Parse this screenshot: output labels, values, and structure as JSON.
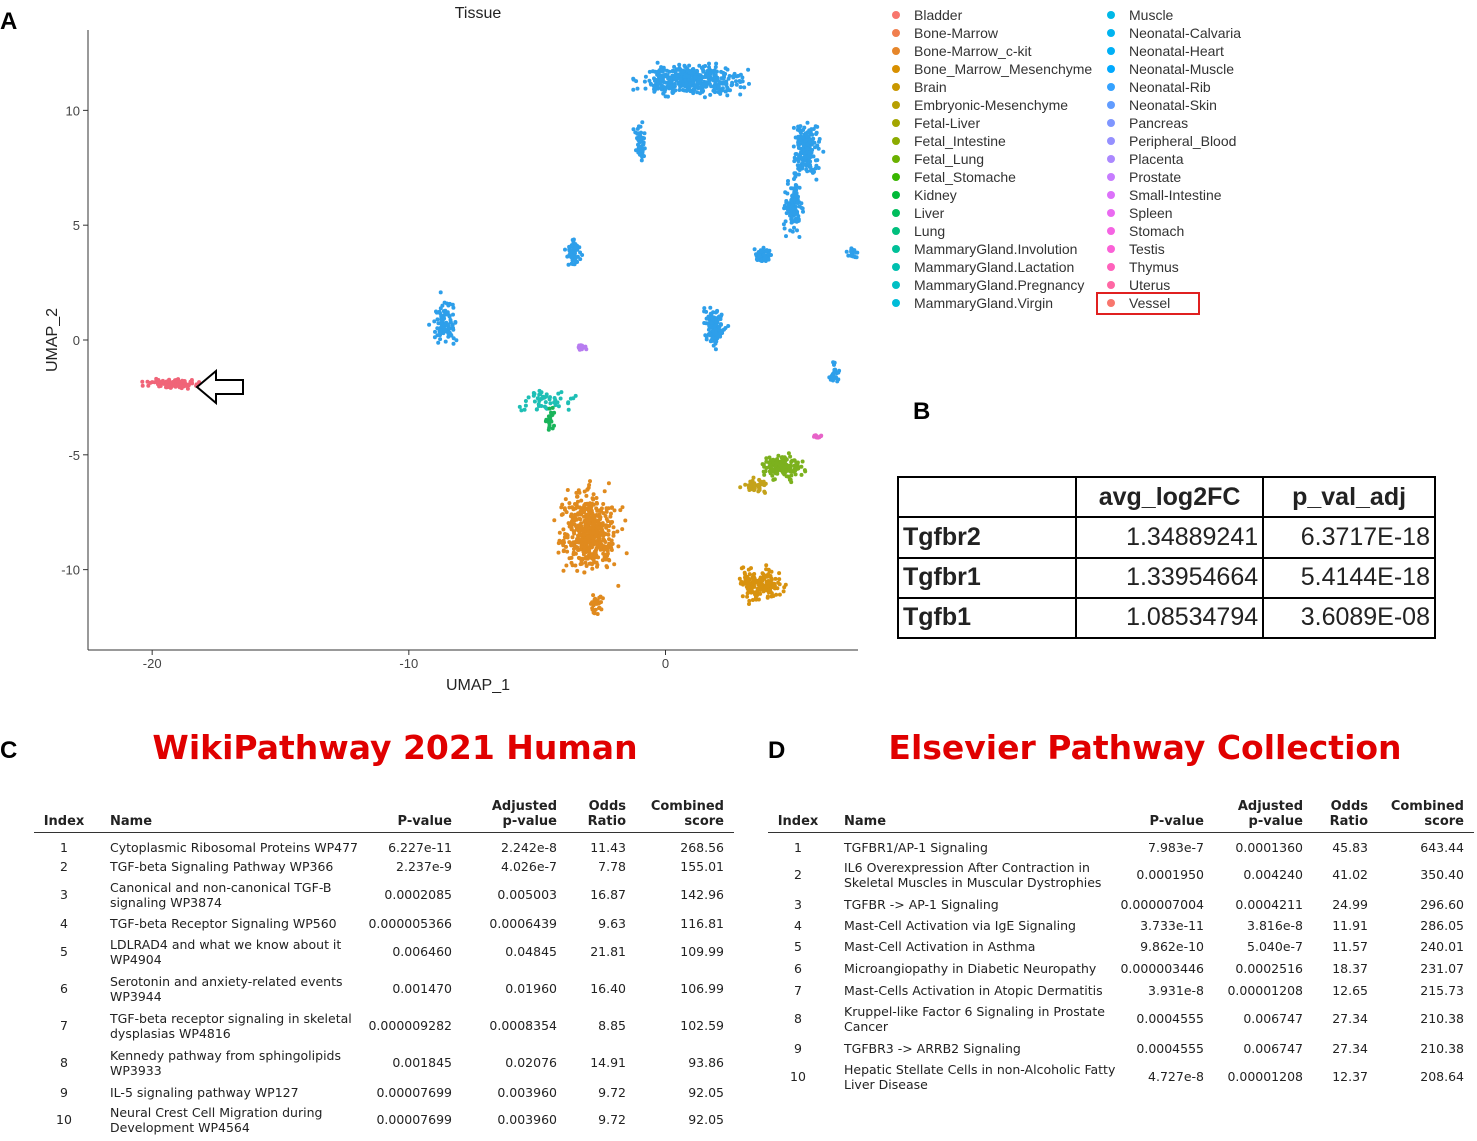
{
  "panel_labels": {
    "a": "A",
    "b": "B",
    "c": "C",
    "d": "D"
  },
  "legend": {
    "items": [
      {
        "label": "Bladder",
        "color": "#F8766D"
      },
      {
        "label": "Bone-Marrow",
        "color": "#F07E4D"
      },
      {
        "label": "Bone-Marrow_c-kit",
        "color": "#E6862A"
      },
      {
        "label": "Bone_Marrow_Mesenchyme",
        "color": "#D89000"
      },
      {
        "label": "Brain",
        "color": "#C99800"
      },
      {
        "label": "Embryonic-Mesenchyme",
        "color": "#B79F00"
      },
      {
        "label": "Fetal-Liver",
        "color": "#A3A500"
      },
      {
        "label": "Fetal_Intestine",
        "color": "#8CAB00"
      },
      {
        "label": "Fetal_Lung",
        "color": "#6BB100"
      },
      {
        "label": "Fetal_Stomache",
        "color": "#39B600"
      },
      {
        "label": "Kidney",
        "color": "#00BA38"
      },
      {
        "label": "Liver",
        "color": "#00BD5C"
      },
      {
        "label": "Lung",
        "color": "#00BF7D"
      },
      {
        "label": "MammaryGland.Involution",
        "color": "#00C098"
      },
      {
        "label": "MammaryGland.Lactation",
        "color": "#00C0AF"
      },
      {
        "label": "MammaryGland.Pregnancy",
        "color": "#00BFC4"
      },
      {
        "label": "MammaryGland.Virgin",
        "color": "#00BCD8"
      },
      {
        "label": "Muscle",
        "color": "#00B8E7"
      },
      {
        "label": "Neonatal-Calvaria",
        "color": "#00B4F0"
      },
      {
        "label": "Neonatal-Heart",
        "color": "#00B0F6"
      },
      {
        "label": "Neonatal-Muscle",
        "color": "#00A9FF"
      },
      {
        "label": "Neonatal-Rib",
        "color": "#35A2FF"
      },
      {
        "label": "Neonatal-Skin",
        "color": "#619CFF"
      },
      {
        "label": "Pancreas",
        "color": "#7F96FF"
      },
      {
        "label": "Peripheral_Blood",
        "color": "#9590FF"
      },
      {
        "label": "Placenta",
        "color": "#AB88FF"
      },
      {
        "label": "Prostate",
        "color": "#C77CFF"
      },
      {
        "label": "Small-Intestine",
        "color": "#DC71FA"
      },
      {
        "label": "Spleen",
        "color": "#EA6AF1"
      },
      {
        "label": "Stomach",
        "color": "#F564E3"
      },
      {
        "label": "Testis",
        "color": "#FB61D7"
      },
      {
        "label": "Thymus",
        "color": "#FF62BC"
      },
      {
        "label": "Uterus",
        "color": "#FF67A4"
      },
      {
        "label": "Vessel",
        "color": "#F8766D"
      }
    ]
  },
  "chart_data": [
    {
      "type": "scatter",
      "title": "Tissue",
      "xlabel": "UMAP_1",
      "ylabel": "UMAP_2",
      "xlim": [
        -22.5,
        7.5
      ],
      "ylim": [
        -13.5,
        13.5
      ],
      "xticks": [
        -20,
        -10,
        0
      ],
      "yticks": [
        -10,
        -5,
        0,
        5,
        10
      ],
      "clusters": [
        {
          "tissue": "Vessel",
          "color": "#F06478",
          "center": [
            -19.2,
            -1.9
          ],
          "spread": [
            0.9,
            0.18
          ],
          "n": 110
        },
        {
          "tissue": "Neonatal-Rib",
          "color": "#2E9FEA",
          "center": [
            1.0,
            11.3
          ],
          "spread": [
            1.8,
            0.6
          ],
          "n": 420
        },
        {
          "tissue": "Neonatal-Rib",
          "color": "#2E9FEA",
          "center": [
            5.5,
            8.3
          ],
          "spread": [
            0.5,
            1.2
          ],
          "n": 180
        },
        {
          "tissue": "Neonatal-Rib",
          "color": "#2E9FEA",
          "center": [
            5.0,
            5.8
          ],
          "spread": [
            0.35,
            1.0
          ],
          "n": 120
        },
        {
          "tissue": "Neonatal-Rib",
          "color": "#2E9FEA",
          "center": [
            3.8,
            3.7
          ],
          "spread": [
            0.3,
            0.3
          ],
          "n": 50
        },
        {
          "tissue": "Neonatal-Rib",
          "color": "#2E9FEA",
          "center": [
            7.3,
            3.8
          ],
          "spread": [
            0.2,
            0.2
          ],
          "n": 20
        },
        {
          "tissue": "Neonatal-Rib",
          "color": "#2E9FEA",
          "center": [
            -1.0,
            8.5
          ],
          "spread": [
            0.2,
            0.8
          ],
          "n": 60
        },
        {
          "tissue": "Neonatal-Rib",
          "color": "#2E9FEA",
          "center": [
            -3.6,
            3.8
          ],
          "spread": [
            0.25,
            0.6
          ],
          "n": 60
        },
        {
          "tissue": "Neonatal-Rib",
          "color": "#2E9FEA",
          "center": [
            -8.6,
            0.8
          ],
          "spread": [
            0.45,
            0.9
          ],
          "n": 90
        },
        {
          "tissue": "Neonatal-Rib",
          "color": "#2E9FEA",
          "center": [
            1.9,
            0.6
          ],
          "spread": [
            0.4,
            0.8
          ],
          "n": 120
        },
        {
          "tissue": "Neonatal-Rib",
          "color": "#2E9FEA",
          "center": [
            6.6,
            -1.4
          ],
          "spread": [
            0.2,
            0.5
          ],
          "n": 25
        },
        {
          "tissue": "MammaryGland.Virgin",
          "color": "#1EBFB5",
          "center": [
            -4.7,
            -2.6
          ],
          "spread": [
            1.1,
            0.5
          ],
          "n": 50
        },
        {
          "tissue": "Liver",
          "color": "#19B45A",
          "center": [
            -4.5,
            -3.5
          ],
          "spread": [
            0.2,
            0.5
          ],
          "n": 20
        },
        {
          "tissue": "Placenta",
          "color": "#B77CF0",
          "center": [
            -3.2,
            -0.3
          ],
          "spread": [
            0.2,
            0.15
          ],
          "n": 12
        },
        {
          "tissue": "Bone_Marrow_Mesenchyme",
          "color": "#E08A1E",
          "center": [
            -3.0,
            -8.3
          ],
          "spread": [
            1.0,
            1.6
          ],
          "n": 520
        },
        {
          "tissue": "Bone_Marrow_Mesenchyme",
          "color": "#E08A1E",
          "center": [
            -2.7,
            -11.5
          ],
          "spread": [
            0.3,
            0.5
          ],
          "n": 30
        },
        {
          "tissue": "Bone_Marrow_Mesenchyme",
          "color": "#D8920E",
          "center": [
            3.7,
            -10.6
          ],
          "spread": [
            0.8,
            0.7
          ],
          "n": 160
        },
        {
          "tissue": "Fetal_Lung",
          "color": "#7CB11E",
          "center": [
            4.6,
            -5.5
          ],
          "spread": [
            0.7,
            0.5
          ],
          "n": 160
        },
        {
          "tissue": "Brain",
          "color": "#C4A21A",
          "center": [
            3.5,
            -6.4
          ],
          "spread": [
            0.5,
            0.3
          ],
          "n": 40
        },
        {
          "tissue": "Thymus",
          "color": "#E763C8",
          "center": [
            5.9,
            -4.2
          ],
          "spread": [
            0.2,
            0.2
          ],
          "n": 10
        }
      ]
    },
    {
      "type": "table",
      "columns": [
        "",
        "avg_log2FC",
        "p_val_adj"
      ],
      "rows": [
        [
          "Tgfbr2",
          "1.34889241",
          "6.3717E-18"
        ],
        [
          "Tgfbr1",
          "1.33954664",
          "5.4144E-18"
        ],
        [
          "Tgfb1",
          "1.08534794",
          "3.6089E-08"
        ]
      ]
    },
    {
      "type": "table",
      "title": "WikiPathway 2021 Human",
      "columns": [
        "Index",
        "Name",
        "P-value",
        "Adjusted\np-value",
        "Odds\nRatio",
        "Combined\nscore"
      ],
      "rows": [
        [
          "1",
          "Cytoplasmic Ribosomal Proteins WP477",
          "6.227e-11",
          "2.242e-8",
          "11.43",
          "268.56"
        ],
        [
          "2",
          "TGF-beta Signaling Pathway WP366",
          "2.237e-9",
          "4.026e-7",
          "7.78",
          "155.01"
        ],
        [
          "3",
          "Canonical and non-canonical TGF-B\nsignaling WP3874",
          "0.0002085",
          "0.005003",
          "16.87",
          "142.96"
        ],
        [
          "4",
          "TGF-beta Receptor Signaling WP560",
          "0.000005366",
          "0.0006439",
          "9.63",
          "116.81"
        ],
        [
          "5",
          "LDLRAD4 and what we know about it\nWP4904",
          "0.006460",
          "0.04845",
          "21.81",
          "109.99"
        ],
        [
          "6",
          "Serotonin and anxiety-related events\nWP3944",
          "0.001470",
          "0.01960",
          "16.40",
          "106.99"
        ],
        [
          "7",
          "TGF-beta receptor signaling in skeletal\ndysplasias WP4816",
          "0.000009282",
          "0.0008354",
          "8.85",
          "102.59"
        ],
        [
          "8",
          "Kennedy pathway from sphingolipids\nWP3933",
          "0.001845",
          "0.02076",
          "14.91",
          "93.86"
        ],
        [
          "9",
          "IL-5 signaling pathway WP127",
          "0.00007699",
          "0.003960",
          "9.72",
          "92.05"
        ],
        [
          "10",
          "Neural Crest Cell Migration during\nDevelopment WP4564",
          "0.00007699",
          "0.003960",
          "9.72",
          "92.05"
        ]
      ]
    },
    {
      "type": "table",
      "title": "Elsevier Pathway Collection",
      "columns": [
        "Index",
        "Name",
        "P-value",
        "Adjusted\np-value",
        "Odds\nRatio",
        "Combined\nscore"
      ],
      "rows": [
        [
          "1",
          "TGFBR1/AP-1 Signaling",
          "7.983e-7",
          "0.0001360",
          "45.83",
          "643.44"
        ],
        [
          "2",
          "IL6 Overexpression After Contraction in\nSkeletal Muscles in Muscular Dystrophies",
          "0.0001950",
          "0.004240",
          "41.02",
          "350.40"
        ],
        [
          "3",
          "TGFBR -> AP-1 Signaling",
          "0.000007004",
          "0.0004211",
          "24.99",
          "296.60"
        ],
        [
          "4",
          "Mast-Cell Activation via IgE Signaling",
          "3.733e-11",
          "3.816e-8",
          "11.91",
          "286.05"
        ],
        [
          "5",
          "Mast-Cell Activation in Asthma",
          "9.862e-10",
          "5.040e-7",
          "11.57",
          "240.01"
        ],
        [
          "6",
          "Microangiopathy in Diabetic Neuropathy",
          "0.000003446",
          "0.0002516",
          "18.37",
          "231.07"
        ],
        [
          "7",
          "Mast-Cells Activation in Atopic Dermatitis",
          "3.931e-8",
          "0.00001208",
          "12.65",
          "215.73"
        ],
        [
          "8",
          "Kruppel-like Factor 6 Signaling in Prostate\nCancer",
          "0.0004555",
          "0.006747",
          "27.34",
          "210.38"
        ],
        [
          "9",
          "TGFBR3 -> ARRB2 Signaling",
          "0.0004555",
          "0.006747",
          "27.34",
          "210.38"
        ],
        [
          "10",
          "Hepatic Stellate Cells in non-Alcoholic Fatty\nLiver Disease",
          "4.727e-8",
          "0.00001208",
          "12.37",
          "208.64"
        ]
      ]
    }
  ]
}
